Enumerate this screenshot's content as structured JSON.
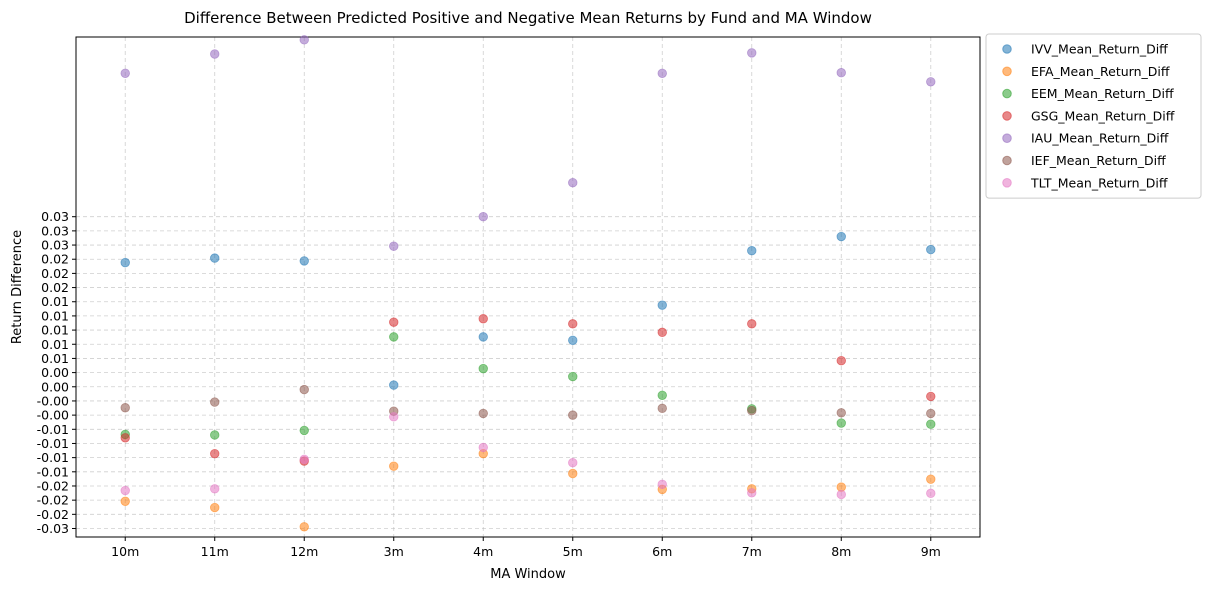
{
  "chart_data": {
    "type": "scatter",
    "title": "Difference Between Predicted Positive and Negative Mean Returns by Fund and MA Window",
    "xlabel": "MA Window",
    "ylabel": "Return Difference",
    "categories": [
      "10m",
      "11m",
      "12m",
      "3m",
      "4m",
      "5m",
      "6m",
      "7m",
      "8m",
      "9m"
    ],
    "ylim": [
      -0.0265,
      0.0617
    ],
    "yticks": [
      {
        "value": -0.025,
        "label": "-0.03"
      },
      {
        "value": -0.0225,
        "label": "-0.02"
      },
      {
        "value": -0.02,
        "label": "-0.02"
      },
      {
        "value": -0.0175,
        "label": "-0.02"
      },
      {
        "value": -0.015,
        "label": "-0.01"
      },
      {
        "value": -0.0125,
        "label": "-0.01"
      },
      {
        "value": -0.01,
        "label": "-0.01"
      },
      {
        "value": -0.0075,
        "label": "-0.01"
      },
      {
        "value": -0.005,
        "label": "-0.00"
      },
      {
        "value": -0.0025,
        "label": "-0.00"
      },
      {
        "value": 0.0,
        "label": "0.00"
      },
      {
        "value": 0.0025,
        "label": "0.00"
      },
      {
        "value": 0.005,
        "label": "0.01"
      },
      {
        "value": 0.0075,
        "label": "0.01"
      },
      {
        "value": 0.01,
        "label": "0.01"
      },
      {
        "value": 0.0125,
        "label": "0.01"
      },
      {
        "value": 0.015,
        "label": "0.01"
      },
      {
        "value": 0.0175,
        "label": "0.02"
      },
      {
        "value": 0.02,
        "label": "0.02"
      },
      {
        "value": 0.0225,
        "label": "0.02"
      },
      {
        "value": 0.025,
        "label": "0.03"
      },
      {
        "value": 0.0275,
        "label": "0.03"
      },
      {
        "value": 0.03,
        "label": "0.03"
      }
    ],
    "grid": true,
    "legend_position": "outside-top-right",
    "series": [
      {
        "name": "IVV_Mean_Return_Diff",
        "color": "#1f77b4",
        "values": [
          0.0219,
          0.0227,
          0.0222,
          0.0003,
          0.0088,
          0.0082,
          0.0144,
          0.024,
          0.0265,
          0.0242
        ]
      },
      {
        "name": "EFA_Mean_Return_Diff",
        "color": "#ff7f0e",
        "values": [
          -0.0202,
          -0.0213,
          -0.0247,
          -0.014,
          -0.0118,
          -0.0153,
          -0.0181,
          -0.018,
          -0.0177,
          -0.0163
        ]
      },
      {
        "name": "EEM_Mean_Return_Diff",
        "color": "#2ca02c",
        "values": [
          -0.0084,
          -0.0085,
          -0.0077,
          0.0088,
          0.0032,
          0.0018,
          -0.0015,
          -0.0039,
          -0.0064,
          -0.0066
        ]
      },
      {
        "name": "GSG_Mean_Return_Diff",
        "color": "#d62728",
        "values": [
          -0.009,
          -0.0118,
          -0.0131,
          0.0114,
          0.012,
          0.0111,
          0.0096,
          0.0111,
          0.0046,
          -0.0017
        ]
      },
      {
        "name": "IAU_Mean_Return_Diff",
        "color": "#9467bd",
        "values": [
          0.0553,
          0.0587,
          0.0612,
          0.0248,
          0.03,
          0.036,
          0.0553,
          0.0589,
          0.0554,
          0.0538
        ]
      },
      {
        "name": "IEF_Mean_Return_Diff",
        "color": "#8c564b",
        "values": [
          -0.0037,
          -0.0027,
          -0.0005,
          -0.0043,
          -0.0047,
          -0.005,
          -0.0038,
          -0.0042,
          -0.0046,
          -0.0047
        ]
      },
      {
        "name": "TLT_Mean_Return_Diff",
        "color": "#e377c2",
        "values": [
          -0.0183,
          -0.018,
          -0.0128,
          -0.0053,
          -0.0107,
          -0.0134,
          -0.0172,
          -0.0187,
          -0.019,
          -0.0188
        ]
      }
    ]
  }
}
